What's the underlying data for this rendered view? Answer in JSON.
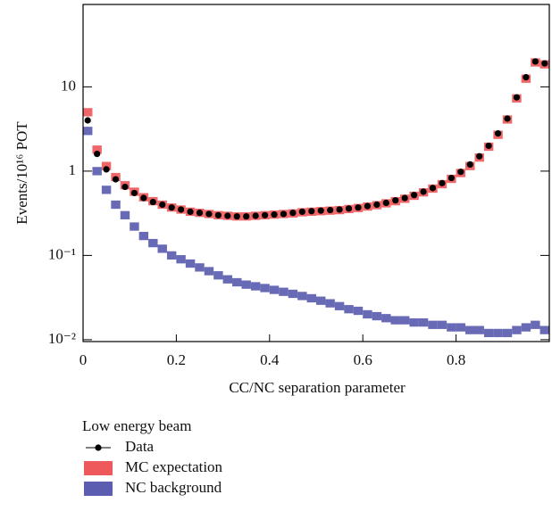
{
  "chart_data": {
    "type": "histogram",
    "x_label": "CC/NC separation parameter",
    "y_label": "Events/10¹⁶ POT",
    "legend_title": "Low energy beam",
    "log_y": true,
    "xlim": [
      0,
      1
    ],
    "ylim": [
      0.0095,
      95
    ],
    "xticks": [
      0,
      0.2,
      0.4,
      0.6,
      0.8
    ],
    "yticks": [
      {
        "value": 0.01,
        "label": "10⁻²"
      },
      {
        "value": 0.1,
        "label": "10⁻¹"
      },
      1,
      10
    ],
    "x": [
      0.01,
      0.03,
      0.05,
      0.07,
      0.09,
      0.11,
      0.13,
      0.15,
      0.17,
      0.19,
      0.21,
      0.23,
      0.25,
      0.27,
      0.29,
      0.31,
      0.33,
      0.35,
      0.37,
      0.39,
      0.41,
      0.43,
      0.45,
      0.47,
      0.49,
      0.51,
      0.53,
      0.55,
      0.57,
      0.59,
      0.61,
      0.63,
      0.65,
      0.67,
      0.69,
      0.71,
      0.73,
      0.75,
      0.77,
      0.79,
      0.81,
      0.83,
      0.85,
      0.87,
      0.89,
      0.91,
      0.93,
      0.95,
      0.97,
      0.99
    ],
    "series": [
      {
        "name": "MC expectation",
        "color": "#ee5a5c",
        "style": "band",
        "values": [
          5.0,
          1.8,
          1.15,
          0.85,
          0.68,
          0.57,
          0.49,
          0.44,
          0.4,
          0.37,
          0.35,
          0.33,
          0.32,
          0.31,
          0.3,
          0.295,
          0.29,
          0.29,
          0.295,
          0.3,
          0.305,
          0.31,
          0.315,
          0.325,
          0.33,
          0.335,
          0.34,
          0.345,
          0.355,
          0.365,
          0.38,
          0.395,
          0.415,
          0.44,
          0.47,
          0.51,
          0.56,
          0.62,
          0.7,
          0.81,
          0.95,
          1.15,
          1.45,
          1.95,
          2.7,
          4.1,
          7.3,
          12.5,
          19.5,
          18.5
        ]
      },
      {
        "name": "NC background",
        "color": "#5b5db0",
        "style": "band",
        "values": [
          3.0,
          1.0,
          0.6,
          0.4,
          0.3,
          0.22,
          0.17,
          0.14,
          0.12,
          0.1,
          0.09,
          0.08,
          0.072,
          0.065,
          0.058,
          0.052,
          0.048,
          0.045,
          0.043,
          0.041,
          0.039,
          0.037,
          0.035,
          0.033,
          0.031,
          0.029,
          0.027,
          0.025,
          0.023,
          0.022,
          0.02,
          0.019,
          0.018,
          0.017,
          0.017,
          0.016,
          0.016,
          0.015,
          0.015,
          0.014,
          0.014,
          0.013,
          0.013,
          0.012,
          0.012,
          0.012,
          0.013,
          0.014,
          0.015,
          0.013
        ]
      },
      {
        "name": "Data",
        "color": "#000000",
        "style": "points",
        "values": [
          4.0,
          1.6,
          1.05,
          0.8,
          0.65,
          0.55,
          0.48,
          0.43,
          0.4,
          0.37,
          0.35,
          0.33,
          0.32,
          0.31,
          0.3,
          0.295,
          0.29,
          0.29,
          0.295,
          0.3,
          0.305,
          0.31,
          0.32,
          0.33,
          0.335,
          0.34,
          0.345,
          0.35,
          0.36,
          0.37,
          0.385,
          0.4,
          0.42,
          0.45,
          0.48,
          0.52,
          0.57,
          0.63,
          0.72,
          0.83,
          0.98,
          1.2,
          1.5,
          2.0,
          2.8,
          4.2,
          7.5,
          13,
          20,
          19
        ]
      }
    ]
  }
}
